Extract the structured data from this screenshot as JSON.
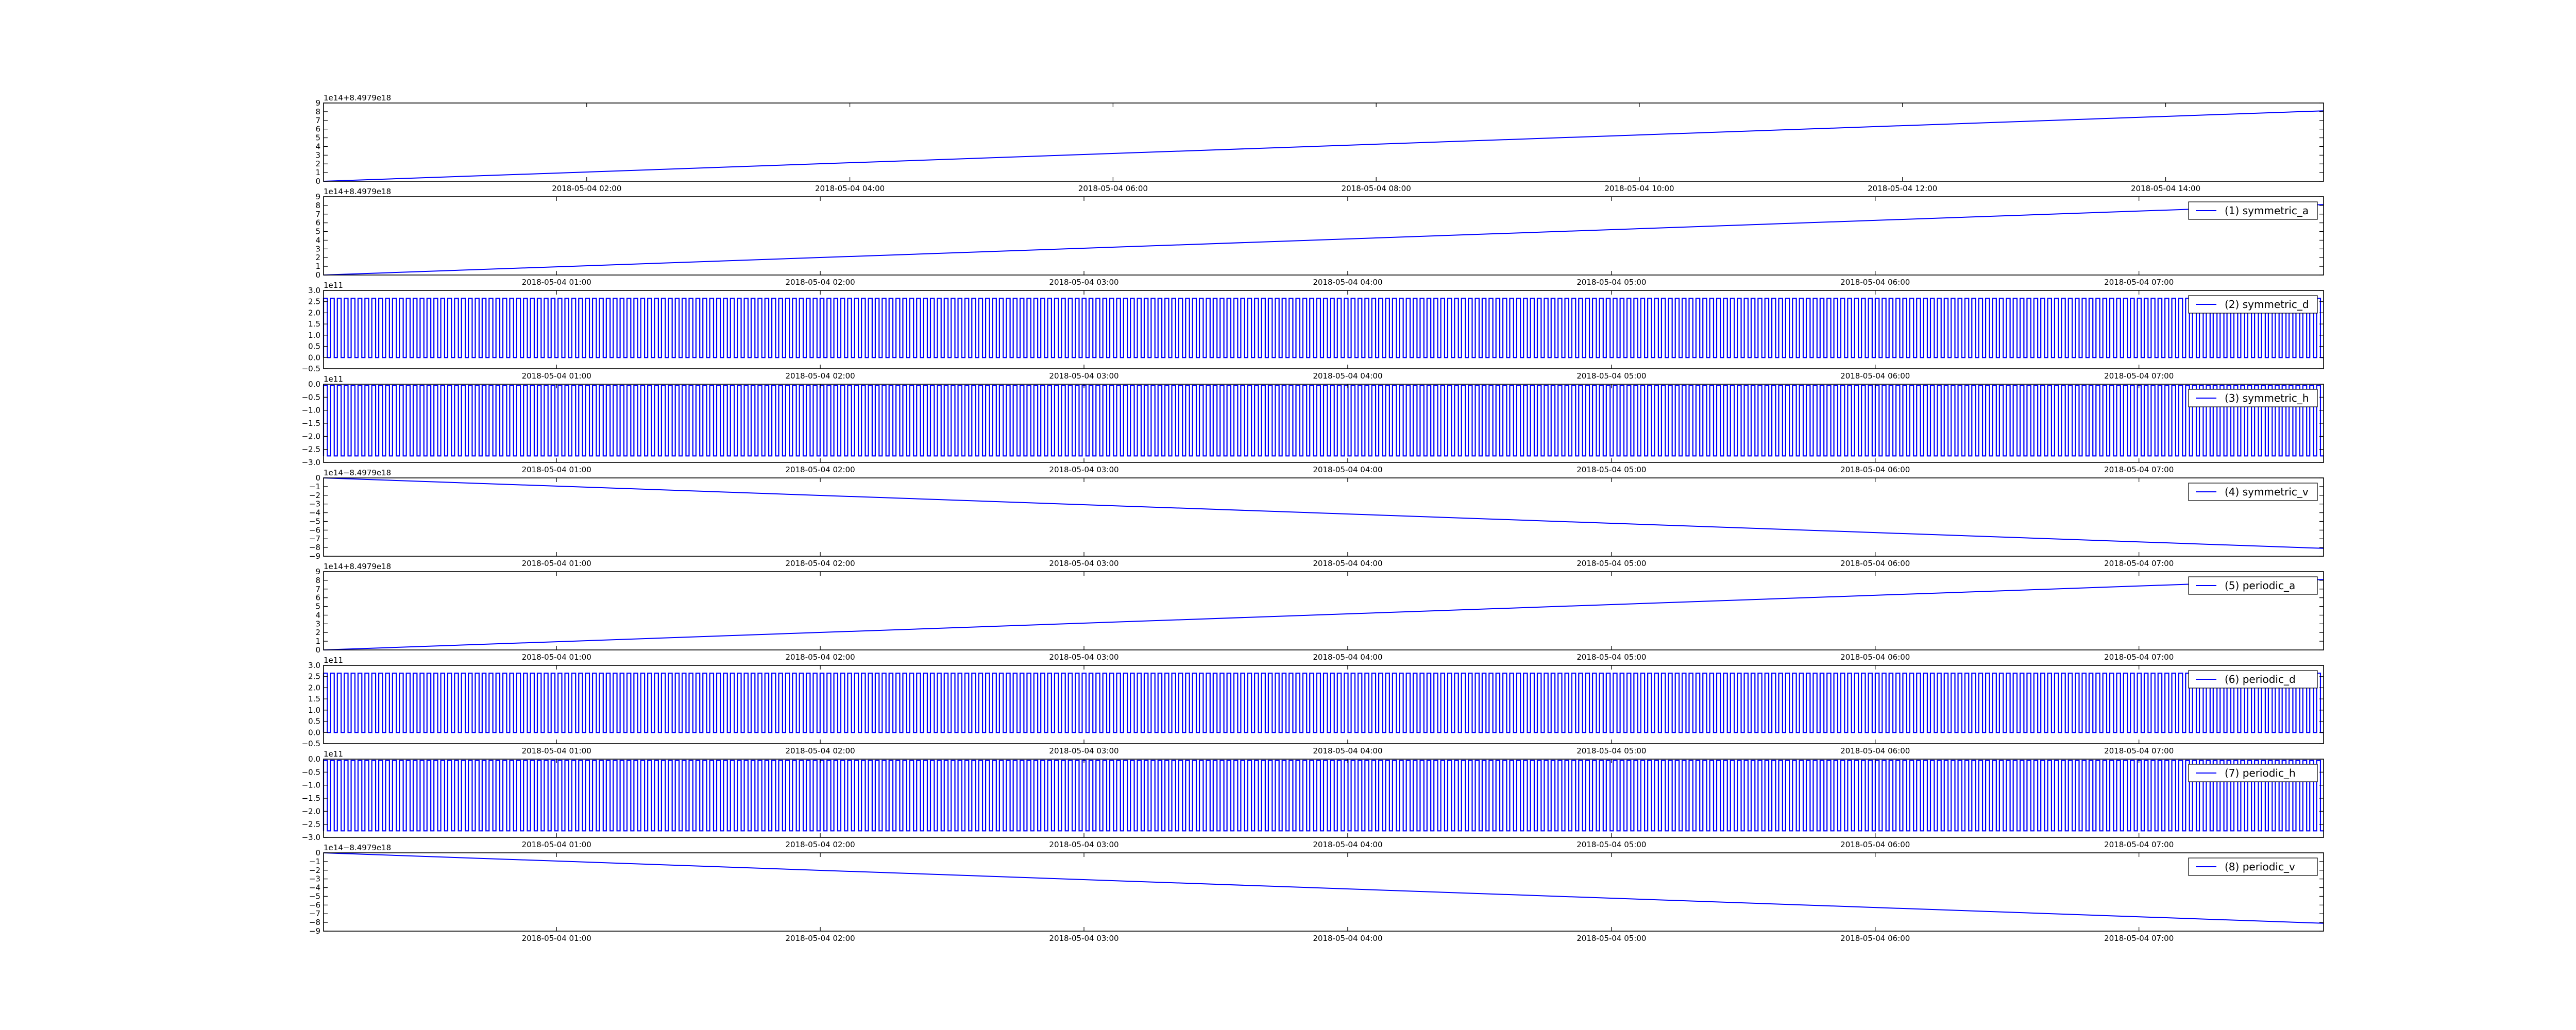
{
  "figure": {
    "background": "#ffffff",
    "line_color": "#0000ff",
    "frame_color": "#000000"
  },
  "chart_data": [
    {
      "type": "line",
      "offset_label": "1e14+8.4979e18",
      "y_ticks": [
        "0",
        "1",
        "2",
        "3",
        "4",
        "5",
        "6",
        "7",
        "8",
        "9"
      ],
      "ylim": [
        0,
        9
      ],
      "x_ticks": [
        "2018-05-04 02:00",
        "2018-05-04 04:00",
        "2018-05-04 06:00",
        "2018-05-04 08:00",
        "2018-05-04 10:00",
        "2018-05-04 12:00",
        "2018-05-04 14:00"
      ],
      "xlim": [
        "2018-05-04 00:00",
        "2018-05-04 15:12"
      ],
      "legend": "",
      "series": [
        {
          "kind": "ramp",
          "x": [
            "2018-05-04 00:00",
            "2018-05-04 15:12"
          ],
          "y": [
            0,
            8.1
          ]
        }
      ]
    },
    {
      "type": "line",
      "offset_label": "1e14+8.4979e18",
      "y_ticks": [
        "0",
        "1",
        "2",
        "3",
        "4",
        "5",
        "6",
        "7",
        "8",
        "9"
      ],
      "ylim": [
        0,
        9
      ],
      "x_ticks": [
        "2018-05-04 01:00",
        "2018-05-04 02:00",
        "2018-05-04 03:00",
        "2018-05-04 04:00",
        "2018-05-04 05:00",
        "2018-05-04 06:00",
        "2018-05-04 07:00"
      ],
      "xlim": [
        "2018-05-04 00:07",
        "2018-05-04 07:42"
      ],
      "legend": "(1) symmetric_a",
      "series": [
        {
          "name": "(1) symmetric_a",
          "kind": "ramp",
          "x": [
            "2018-05-04 00:07",
            "2018-05-04 07:42"
          ],
          "y": [
            0,
            8.1
          ]
        }
      ]
    },
    {
      "type": "line",
      "offset_label": "1e11",
      "y_ticks": [
        "−0.5",
        "0.0",
        "0.5",
        "1.0",
        "1.5",
        "2.0",
        "2.5",
        "3.0"
      ],
      "ylim": [
        -0.5,
        3.0
      ],
      "x_ticks": [
        "2018-05-04 01:00",
        "2018-05-04 02:00",
        "2018-05-04 03:00",
        "2018-05-04 04:00",
        "2018-05-04 05:00",
        "2018-05-04 06:00",
        "2018-05-04 07:00"
      ],
      "xlim": [
        "2018-05-04 00:07",
        "2018-05-04 07:42"
      ],
      "legend": "(2) symmetric_d",
      "series": [
        {
          "name": "(2) symmetric_d",
          "kind": "oscillation",
          "low": 0.0,
          "high": 2.65,
          "cycles": 290
        }
      ]
    },
    {
      "type": "line",
      "offset_label": "1e11",
      "y_ticks": [
        "−3.0",
        "−2.5",
        "−2.0",
        "−1.5",
        "−1.0",
        "−0.5",
        "0.0"
      ],
      "ylim": [
        -3.0,
        0.0
      ],
      "x_ticks": [
        "2018-05-04 01:00",
        "2018-05-04 02:00",
        "2018-05-04 03:00",
        "2018-05-04 04:00",
        "2018-05-04 05:00",
        "2018-05-04 06:00",
        "2018-05-04 07:00"
      ],
      "xlim": [
        "2018-05-04 00:07",
        "2018-05-04 07:42"
      ],
      "legend": "(3) symmetric_h",
      "series": [
        {
          "name": "(3) symmetric_h",
          "kind": "oscillation",
          "low": -2.75,
          "high": -0.05,
          "cycles": 290
        }
      ]
    },
    {
      "type": "line",
      "offset_label": "1e14−8.4979e18",
      "y_ticks": [
        "−9",
        "−8",
        "−7",
        "−6",
        "−5",
        "−4",
        "−3",
        "−2",
        "−1",
        "0"
      ],
      "ylim": [
        -9,
        0
      ],
      "x_ticks": [
        "2018-05-04 01:00",
        "2018-05-04 02:00",
        "2018-05-04 03:00",
        "2018-05-04 04:00",
        "2018-05-04 05:00",
        "2018-05-04 06:00",
        "2018-05-04 07:00"
      ],
      "xlim": [
        "2018-05-04 00:07",
        "2018-05-04 07:42"
      ],
      "legend": "(4) symmetric_v",
      "series": [
        {
          "name": "(4) symmetric_v",
          "kind": "ramp",
          "x": [
            "2018-05-04 00:07",
            "2018-05-04 07:42"
          ],
          "y": [
            0,
            -8.1
          ]
        }
      ]
    },
    {
      "type": "line",
      "offset_label": "1e14+8.4979e18",
      "y_ticks": [
        "0",
        "1",
        "2",
        "3",
        "4",
        "5",
        "6",
        "7",
        "8",
        "9"
      ],
      "ylim": [
        0,
        9
      ],
      "x_ticks": [
        "2018-05-04 01:00",
        "2018-05-04 02:00",
        "2018-05-04 03:00",
        "2018-05-04 04:00",
        "2018-05-04 05:00",
        "2018-05-04 06:00",
        "2018-05-04 07:00"
      ],
      "xlim": [
        "2018-05-04 00:07",
        "2018-05-04 07:42"
      ],
      "legend": "(5) periodic_a",
      "series": [
        {
          "name": "(5) periodic_a",
          "kind": "ramp",
          "x": [
            "2018-05-04 00:07",
            "2018-05-04 07:42"
          ],
          "y": [
            0,
            8.1
          ]
        }
      ]
    },
    {
      "type": "line",
      "offset_label": "1e11",
      "y_ticks": [
        "−0.5",
        "0.0",
        "0.5",
        "1.0",
        "1.5",
        "2.0",
        "2.5",
        "3.0"
      ],
      "ylim": [
        -0.5,
        3.0
      ],
      "x_ticks": [
        "2018-05-04 01:00",
        "2018-05-04 02:00",
        "2018-05-04 03:00",
        "2018-05-04 04:00",
        "2018-05-04 05:00",
        "2018-05-04 06:00",
        "2018-05-04 07:00"
      ],
      "xlim": [
        "2018-05-04 00:07",
        "2018-05-04 07:42"
      ],
      "legend": "(6) periodic_d",
      "series": [
        {
          "name": "(6) periodic_d",
          "kind": "oscillation",
          "low": 0.0,
          "high": 2.65,
          "cycles": 290
        }
      ]
    },
    {
      "type": "line",
      "offset_label": "1e11",
      "y_ticks": [
        "−3.0",
        "−2.5",
        "−2.0",
        "−1.5",
        "−1.0",
        "−0.5",
        "0.0"
      ],
      "ylim": [
        -3.0,
        0.0
      ],
      "x_ticks": [
        "2018-05-04 01:00",
        "2018-05-04 02:00",
        "2018-05-04 03:00",
        "2018-05-04 04:00",
        "2018-05-04 05:00",
        "2018-05-04 06:00",
        "2018-05-04 07:00"
      ],
      "xlim": [
        "2018-05-04 00:07",
        "2018-05-04 07:42"
      ],
      "legend": "(7) periodic_h",
      "series": [
        {
          "name": "(7) periodic_h",
          "kind": "oscillation",
          "low": -2.75,
          "high": -0.05,
          "cycles": 290
        }
      ]
    },
    {
      "type": "line",
      "offset_label": "1e14−8.4979e18",
      "y_ticks": [
        "−9",
        "−8",
        "−7",
        "−6",
        "−5",
        "−4",
        "−3",
        "−2",
        "−1",
        "0"
      ],
      "ylim": [
        -9,
        0
      ],
      "x_ticks": [
        "2018-05-04 01:00",
        "2018-05-04 02:00",
        "2018-05-04 03:00",
        "2018-05-04 04:00",
        "2018-05-04 05:00",
        "2018-05-04 06:00",
        "2018-05-04 07:00"
      ],
      "xlim": [
        "2018-05-04 00:07",
        "2018-05-04 07:42"
      ],
      "legend": "(8) periodic_v",
      "series": [
        {
          "name": "(8) periodic_v",
          "kind": "ramp",
          "x": [
            "2018-05-04 00:07",
            "2018-05-04 07:42"
          ],
          "y": [
            0,
            -8.1
          ]
        }
      ]
    }
  ]
}
